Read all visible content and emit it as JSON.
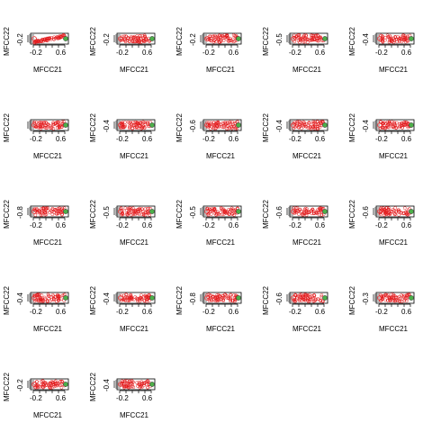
{
  "chart_data": [
    {
      "type": "scatter",
      "xlabel": "MFCC21",
      "ylabel": "MFCC22",
      "x_ticks": [
        "-0.2",
        "0.6"
      ],
      "y_ticks": [
        "-0.2"
      ],
      "color": "#e31a1c",
      "variant": "diagonal"
    },
    {
      "type": "scatter",
      "xlabel": "MFCC21",
      "ylabel": "MFCC22",
      "x_ticks": [
        "-0.2",
        "0.6"
      ],
      "y_ticks": [
        "-0.2"
      ],
      "color": "#e31a1c",
      "variant": "flat"
    },
    {
      "type": "scatter",
      "xlabel": "MFCC21",
      "ylabel": "MFCC22",
      "x_ticks": [
        "-0.2",
        "0.6"
      ],
      "y_ticks": [
        "-0.2"
      ],
      "color": "#e31a1c",
      "variant": "flat"
    },
    {
      "type": "scatter",
      "xlabel": "MFCC21",
      "ylabel": "MFCC22",
      "x_ticks": [
        "-0.2",
        "0.6"
      ],
      "y_ticks": [
        "-0.5"
      ],
      "color": "#e31a1c",
      "variant": "flat"
    },
    {
      "type": "scatter",
      "xlabel": "MFCC21",
      "ylabel": "MFCC22",
      "x_ticks": [
        "-0.2",
        "0.6"
      ],
      "y_ticks": [
        "-0.4"
      ],
      "color": "#e31a1c",
      "variant": "flat"
    },
    {
      "type": "scatter",
      "xlabel": "MFCC21",
      "ylabel": "MFCC22",
      "x_ticks": [
        "-0.2",
        "0.6"
      ],
      "y_ticks": [],
      "color": "#e31a1c",
      "variant": "flat"
    },
    {
      "type": "scatter",
      "xlabel": "MFCC21",
      "ylabel": "MFCC22",
      "x_ticks": [
        "-0.2",
        "0.6"
      ],
      "y_ticks": [
        "-0.4"
      ],
      "color": "#e31a1c",
      "variant": "flat"
    },
    {
      "type": "scatter",
      "xlabel": "MFCC21",
      "ylabel": "MFCC22",
      "x_ticks": [
        "-0.2",
        "0.6"
      ],
      "y_ticks": [
        "-0.6"
      ],
      "color": "#e31a1c",
      "variant": "flat"
    },
    {
      "type": "scatter",
      "xlabel": "MFCC21",
      "ylabel": "MFCC22",
      "x_ticks": [
        "-0.2",
        "0.6"
      ],
      "y_ticks": [
        "-0.4"
      ],
      "color": "#e31a1c",
      "variant": "flat"
    },
    {
      "type": "scatter",
      "xlabel": "MFCC21",
      "ylabel": "MFCC22",
      "x_ticks": [
        "-0.2",
        "0.6"
      ],
      "y_ticks": [
        "-0.4"
      ],
      "color": "#e31a1c",
      "variant": "flat"
    },
    {
      "type": "scatter",
      "xlabel": "MFCC21",
      "ylabel": "MFCC22",
      "x_ticks": [
        "-0.2",
        "0.6"
      ],
      "y_ticks": [
        "-0.8"
      ],
      "color": "#e31a1c",
      "variant": "flat"
    },
    {
      "type": "scatter",
      "xlabel": "MFCC21",
      "ylabel": "MFCC22",
      "x_ticks": [
        "-0.2",
        "0.6"
      ],
      "y_ticks": [
        "-0.5"
      ],
      "color": "#e31a1c",
      "variant": "flat"
    },
    {
      "type": "scatter",
      "xlabel": "MFCC21",
      "ylabel": "MFCC22",
      "x_ticks": [
        "-0.2",
        "0.6"
      ],
      "y_ticks": [
        "-0.5"
      ],
      "color": "#e31a1c",
      "variant": "flat"
    },
    {
      "type": "scatter",
      "xlabel": "MFCC21",
      "ylabel": "MFCC22",
      "x_ticks": [
        "-0.2",
        "0.6"
      ],
      "y_ticks": [
        "-0.6"
      ],
      "color": "#e31a1c",
      "variant": "flat"
    },
    {
      "type": "scatter",
      "xlabel": "MFCC21",
      "ylabel": "MFCC22",
      "x_ticks": [
        "-0.2",
        "0.6"
      ],
      "y_ticks": [
        "-0.6"
      ],
      "color": "#e31a1c",
      "variant": "flat"
    },
    {
      "type": "scatter",
      "xlabel": "MFCC21",
      "ylabel": "MFCC22",
      "x_ticks": [
        "-0.2",
        "0.6"
      ],
      "y_ticks": [
        "-0.4"
      ],
      "color": "#e31a1c",
      "variant": "flat"
    },
    {
      "type": "scatter",
      "xlabel": "MFCC21",
      "ylabel": "MFCC22",
      "x_ticks": [
        "-0.2",
        "0.6"
      ],
      "y_ticks": [
        "-0.4"
      ],
      "color": "#e31a1c",
      "variant": "flat"
    },
    {
      "type": "scatter",
      "xlabel": "MFCC21",
      "ylabel": "MFCC22",
      "x_ticks": [
        "-0.2",
        "0.6"
      ],
      "y_ticks": [
        "-0.8"
      ],
      "color": "#e31a1c",
      "variant": "flat"
    },
    {
      "type": "scatter",
      "xlabel": "MFCC21",
      "ylabel": "MFCC22",
      "x_ticks": [
        "-0.2",
        "0.6"
      ],
      "y_ticks": [
        "-0.6"
      ],
      "color": "#e31a1c",
      "variant": "flat"
    },
    {
      "type": "scatter",
      "xlabel": "MFCC21",
      "ylabel": "MFCC22",
      "x_ticks": [
        "-0.2",
        "0.6"
      ],
      "y_ticks": [
        "-0.3"
      ],
      "color": "#e31a1c",
      "variant": "flat"
    },
    {
      "type": "scatter",
      "xlabel": "MFCC21",
      "ylabel": "MFCC22",
      "x_ticks": [
        "-0.2",
        "0.6"
      ],
      "y_ticks": [
        "-0.2"
      ],
      "color": "#e31a1c",
      "variant": "flat"
    },
    {
      "type": "scatter",
      "xlabel": "MFCC21",
      "ylabel": "MFCC22",
      "x_ticks": [
        "-0.2",
        "0.6"
      ],
      "y_ticks": [
        "-0.4"
      ],
      "color": "#e31a1c",
      "variant": "flat"
    }
  ]
}
